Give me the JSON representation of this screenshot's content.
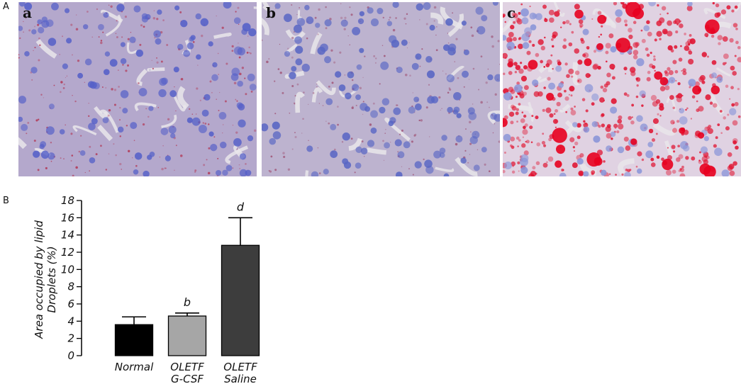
{
  "figure": {
    "panel_a_label": "A",
    "panel_b_label": "B"
  },
  "micrographs": [
    {
      "label": "a",
      "base_color": "#b4a8cc",
      "nuclei_color": "#5560c8",
      "stain_color": "#b23a58"
    },
    {
      "label": "b",
      "base_color": "#bdb3cf",
      "nuclei_color": "#5866c4",
      "stain_color": "#a05577"
    },
    {
      "label": "c",
      "base_color": "#e0d2e2",
      "nuclei_color": "#8a95d8",
      "stain_color": "#e0102e"
    }
  ],
  "chart_data": {
    "type": "bar",
    "categories": [
      {
        "line1": "Normal",
        "line2": ""
      },
      {
        "line1": "OLETF",
        "line2": "G-CSF"
      },
      {
        "line1": "OLETF",
        "line2": "Saline"
      }
    ],
    "values": [
      3.6,
      4.6,
      12.8
    ],
    "errors": [
      0.9,
      0.35,
      3.2
    ],
    "significance": [
      "",
      "b",
      "d"
    ],
    "bar_colors": [
      "#000000",
      "#a6a6a6",
      "#3d3d3d"
    ],
    "ylabel_line1": "Area occupied by lipid",
    "ylabel_line2": "Droplets (%)",
    "ylim": [
      0,
      18
    ],
    "yticks": [
      "0",
      "2",
      "4",
      "6",
      "8",
      "10",
      "12",
      "14",
      "16",
      "18"
    ]
  }
}
